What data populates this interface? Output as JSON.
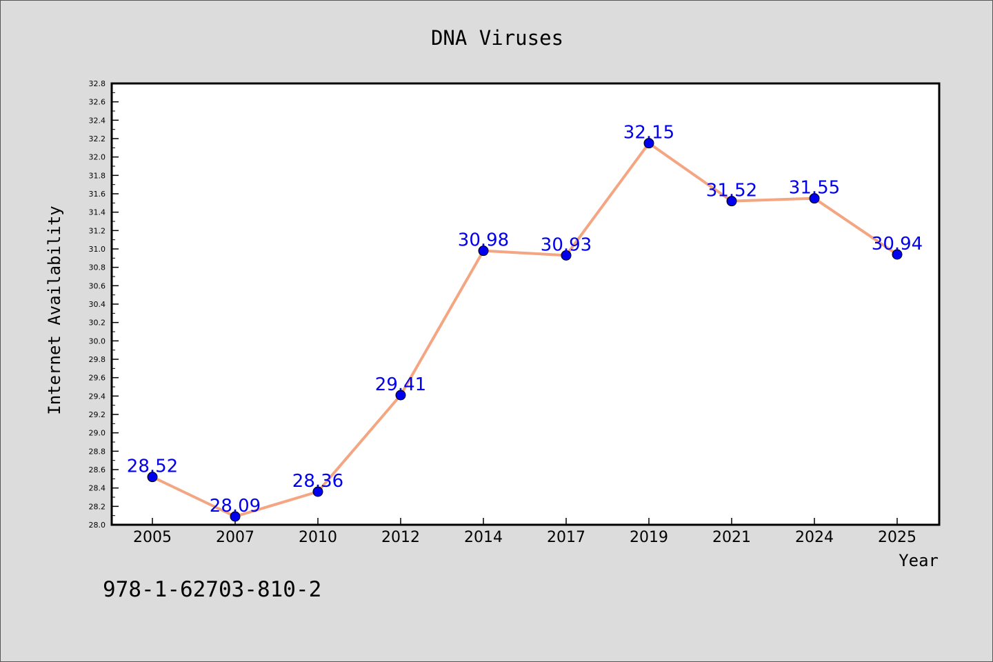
{
  "colors": {
    "background": "#dcdcdc",
    "plot_background": "#ffffff",
    "line": "#f4a582",
    "marker": "#0000ee",
    "data_label": "#0000ee",
    "text": "#000000"
  },
  "footer": {
    "isbn": "978-1-62703-810-2"
  },
  "chart_data": {
    "type": "line",
    "title": "DNA Viruses",
    "xlabel": "Year",
    "ylabel": "Internet Availability",
    "categories": [
      "2005",
      "2007",
      "2010",
      "2012",
      "2014",
      "2017",
      "2019",
      "2021",
      "2024",
      "2025"
    ],
    "series": [
      {
        "values": [
          28.52,
          28.09,
          28.36,
          29.41,
          30.98,
          30.93,
          32.15,
          31.52,
          31.55,
          30.94
        ],
        "labels": [
          "28.52",
          "28.09",
          "28.36",
          "29.41",
          "30.98",
          "30.93",
          "32.15",
          "31.52",
          "31.55",
          "30.94"
        ]
      }
    ],
    "ylim": [
      28.0,
      32.8
    ],
    "y_ticks": [
      "28.0",
      "28.2",
      "28.4",
      "28.6",
      "28.8",
      "29.0",
      "29.2",
      "29.4",
      "29.6",
      "29.8",
      "30.0",
      "30.2",
      "30.4",
      "30.6",
      "30.8",
      "31.0",
      "31.2",
      "31.4",
      "31.6",
      "31.8",
      "32.0",
      "32.2",
      "32.4",
      "32.6",
      "32.8"
    ],
    "grid": false,
    "legend": "none",
    "marker": "circle"
  }
}
